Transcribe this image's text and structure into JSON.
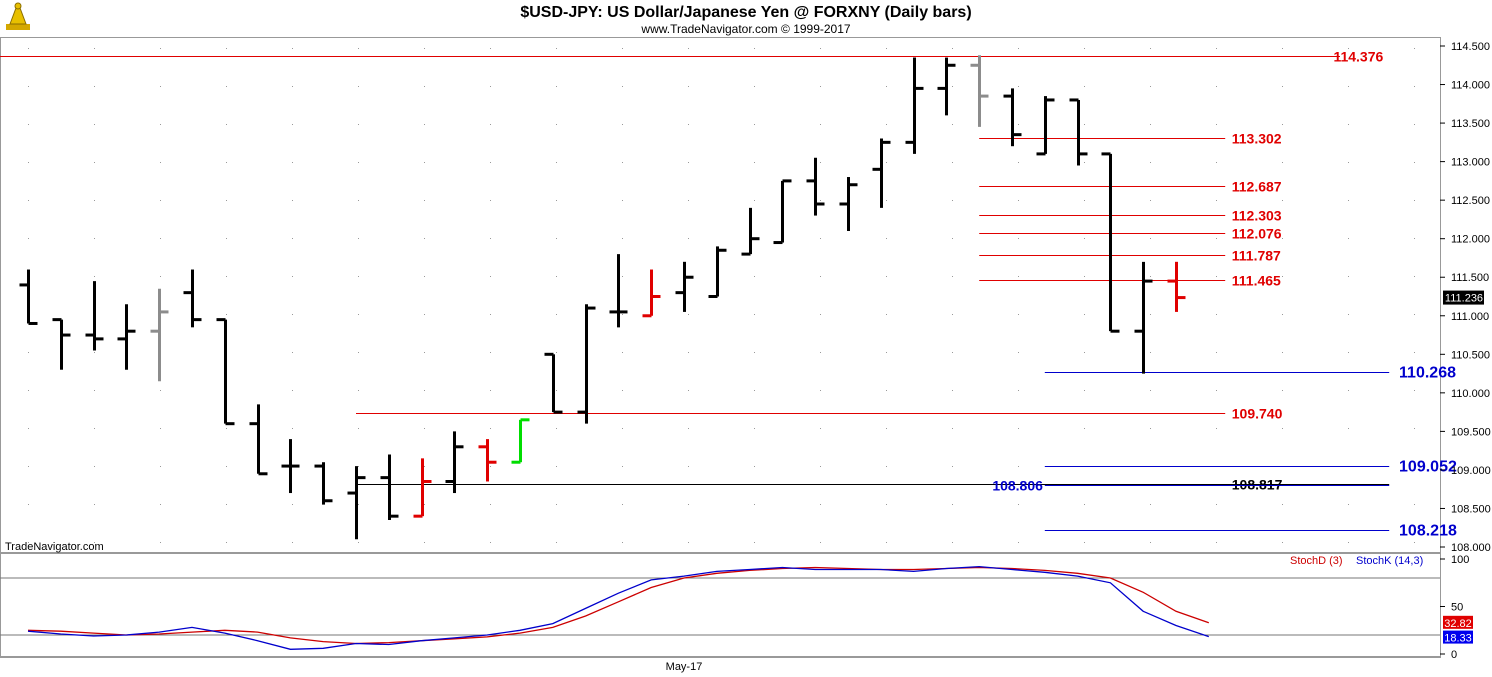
{
  "chart_data": {
    "type": "ohlc",
    "title": "$USD-JPY:  US Dollar/Japanese Yen @ FORXNY  (Daily bars)",
    "subtitle": "www.TradeNavigator.com © 1999-2017",
    "watermark": "TradeNavigator.com",
    "x_label": "May-17",
    "y_ticks": [
      "114.500",
      "114.000",
      "113.500",
      "113.000",
      "112.500",
      "112.000",
      "111.500",
      "111.000",
      "110.500",
      "110.000",
      "109.500",
      "109.000",
      "108.500",
      "108.000"
    ],
    "ylim": [
      108.0,
      114.5
    ],
    "last_price": "111.236",
    "bars": [
      {
        "o": 111.4,
        "h": 111.6,
        "l": 110.9,
        "c": 110.9,
        "color": "black"
      },
      {
        "o": 110.95,
        "h": 110.95,
        "l": 110.3,
        "c": 110.75,
        "color": "black"
      },
      {
        "o": 110.75,
        "h": 111.45,
        "l": 110.55,
        "c": 110.7,
        "color": "black"
      },
      {
        "o": 110.7,
        "h": 111.15,
        "l": 110.3,
        "c": 110.8,
        "color": "black"
      },
      {
        "o": 110.8,
        "h": 111.35,
        "l": 110.15,
        "c": 111.05,
        "color": "gray"
      },
      {
        "o": 111.3,
        "h": 111.6,
        "l": 110.85,
        "c": 110.95,
        "color": "black"
      },
      {
        "o": 110.95,
        "h": 110.95,
        "l": 109.6,
        "c": 109.6,
        "color": "black"
      },
      {
        "o": 109.6,
        "h": 109.85,
        "l": 108.95,
        "c": 108.95,
        "color": "black"
      },
      {
        "o": 109.05,
        "h": 109.4,
        "l": 108.7,
        "c": 109.05,
        "color": "black"
      },
      {
        "o": 109.05,
        "h": 109.1,
        "l": 108.55,
        "c": 108.6,
        "color": "black"
      },
      {
        "o": 108.7,
        "h": 109.05,
        "l": 108.1,
        "c": 108.9,
        "color": "black"
      },
      {
        "o": 108.9,
        "h": 109.2,
        "l": 108.35,
        "c": 108.4,
        "color": "black"
      },
      {
        "o": 108.4,
        "h": 109.15,
        "l": 108.4,
        "c": 108.85,
        "color": "red"
      },
      {
        "o": 108.85,
        "h": 109.5,
        "l": 108.7,
        "c": 109.3,
        "color": "black"
      },
      {
        "o": 109.3,
        "h": 109.4,
        "l": 108.85,
        "c": 109.1,
        "color": "red"
      },
      {
        "o": 109.1,
        "h": 109.65,
        "l": 109.1,
        "c": 109.65,
        "color": "green"
      },
      {
        "o": 110.5,
        "h": 110.5,
        "l": 109.75,
        "c": 109.75,
        "color": "black"
      },
      {
        "o": 109.75,
        "h": 111.15,
        "l": 109.6,
        "c": 111.1,
        "color": "black"
      },
      {
        "o": 111.05,
        "h": 111.8,
        "l": 110.85,
        "c": 111.05,
        "color": "black"
      },
      {
        "o": 111.0,
        "h": 111.6,
        "l": 111.0,
        "c": 111.25,
        "color": "red"
      },
      {
        "o": 111.3,
        "h": 111.7,
        "l": 111.05,
        "c": 111.5,
        "color": "black"
      },
      {
        "o": 111.25,
        "h": 111.9,
        "l": 111.25,
        "c": 111.85,
        "color": "black"
      },
      {
        "o": 111.8,
        "h": 112.4,
        "l": 111.8,
        "c": 112.0,
        "color": "black"
      },
      {
        "o": 111.95,
        "h": 112.75,
        "l": 111.95,
        "c": 112.75,
        "color": "black"
      },
      {
        "o": 112.75,
        "h": 113.05,
        "l": 112.3,
        "c": 112.45,
        "color": "black"
      },
      {
        "o": 112.45,
        "h": 112.8,
        "l": 112.1,
        "c": 112.7,
        "color": "black"
      },
      {
        "o": 112.9,
        "h": 113.3,
        "l": 112.4,
        "c": 113.25,
        "color": "black"
      },
      {
        "o": 113.25,
        "h": 114.35,
        "l": 113.1,
        "c": 113.95,
        "color": "black"
      },
      {
        "o": 113.95,
        "h": 114.35,
        "l": 113.6,
        "c": 114.25,
        "color": "black"
      },
      {
        "o": 114.25,
        "h": 114.38,
        "l": 113.45,
        "c": 113.85,
        "color": "gray"
      },
      {
        "o": 113.85,
        "h": 113.95,
        "l": 113.2,
        "c": 113.35,
        "color": "black"
      },
      {
        "o": 113.1,
        "h": 113.85,
        "l": 113.1,
        "c": 113.8,
        "color": "black"
      },
      {
        "o": 113.8,
        "h": 113.8,
        "l": 112.95,
        "c": 113.1,
        "color": "black"
      },
      {
        "o": 113.1,
        "h": 113.1,
        "l": 110.8,
        "c": 110.8,
        "color": "black"
      },
      {
        "o": 110.8,
        "h": 111.7,
        "l": 110.25,
        "c": 111.45,
        "color": "black"
      },
      {
        "o": 111.45,
        "h": 111.7,
        "l": 111.05,
        "c": 111.236,
        "color": "red"
      }
    ],
    "levels": [
      {
        "value": 114.376,
        "label": "114.376",
        "color": "#e00000",
        "text_color": "#e00000",
        "from_bar": -1,
        "to_bar": 40,
        "label_bar": 39.8
      },
      {
        "value": 113.302,
        "label": "113.302",
        "color": "#e00000",
        "text_color": "#e00000",
        "from_bar": 29,
        "to_bar": 36.5,
        "label_bar": 36.7
      },
      {
        "value": 112.687,
        "label": "112.687",
        "color": "#e00000",
        "text_color": "#e00000",
        "from_bar": 29,
        "to_bar": 36.5,
        "label_bar": 36.7
      },
      {
        "value": 112.303,
        "label": "112.303",
        "color": "#e00000",
        "text_color": "#e00000",
        "from_bar": 29,
        "to_bar": 36.5,
        "label_bar": 36.7
      },
      {
        "value": 112.076,
        "label": "112.076",
        "color": "#e00000",
        "text_color": "#e00000",
        "from_bar": 29,
        "to_bar": 36.5,
        "label_bar": 36.7
      },
      {
        "value": 111.787,
        "label": "111.787",
        "color": "#e00000",
        "text_color": "#e00000",
        "from_bar": 29,
        "to_bar": 36.5,
        "label_bar": 36.7
      },
      {
        "value": 111.465,
        "label": "111.465",
        "color": "#e00000",
        "text_color": "#e00000",
        "from_bar": 29,
        "to_bar": 36.5,
        "label_bar": 36.7
      },
      {
        "value": 110.268,
        "label": "110.268",
        "color": "#0000cc",
        "text_color": "#0000cc",
        "from_bar": 31,
        "to_bar": 41.5,
        "label_bar": 41.8
      },
      {
        "value": 109.74,
        "label": "109.740",
        "color": "#e00000",
        "text_color": "#e00000",
        "from_bar": 10,
        "to_bar": 36.5,
        "label_bar": 36.7
      },
      {
        "value": 109.052,
        "label": "109.052",
        "color": "#0000cc",
        "text_color": "#0000cc",
        "from_bar": 31,
        "to_bar": 41.5,
        "label_bar": 41.8
      },
      {
        "value": 108.817,
        "label": "108.817",
        "color": "#000000",
        "text_color": "#000000",
        "from_bar": 10,
        "to_bar": 41.5,
        "label_bar": 36.7
      },
      {
        "value": 108.806,
        "label": "108.806",
        "color": "#0000cc",
        "text_color": "#0000cc",
        "from_bar": 31,
        "to_bar": 41.5,
        "label_bar": 29.4
      },
      {
        "value": 108.218,
        "label": "108.218",
        "color": "#0000cc",
        "text_color": "#0000cc",
        "from_bar": 31,
        "to_bar": 41.5,
        "label_bar": 41.8
      }
    ],
    "stoch": {
      "ylim": [
        0,
        100
      ],
      "ticks": [
        "100",
        "50",
        "0"
      ],
      "ref_lines": [
        80,
        20
      ],
      "legend": [
        {
          "text": "StochD (3)",
          "color": "#cc0000"
        },
        {
          "text": "StochK (14,3)",
          "color": "#0000cc"
        }
      ],
      "d_last": "32.82",
      "k_last": "18.33",
      "d_values": [
        25,
        24,
        22,
        20,
        21,
        23,
        25,
        23,
        17,
        13,
        11,
        12,
        14,
        16,
        18,
        22,
        28,
        40,
        55,
        70,
        80,
        85,
        88,
        90,
        91,
        90,
        89,
        89,
        90,
        91,
        90,
        88,
        85,
        80,
        65,
        45,
        32.82
      ],
      "k_values": [
        24,
        21,
        19,
        20,
        23,
        28,
        22,
        14,
        5,
        6,
        11,
        10,
        14,
        17,
        20,
        25,
        32,
        48,
        64,
        78,
        82,
        87,
        89,
        91,
        89,
        89,
        89,
        87,
        90,
        92,
        89,
        86,
        82,
        75,
        45,
        30,
        18.33
      ]
    }
  }
}
